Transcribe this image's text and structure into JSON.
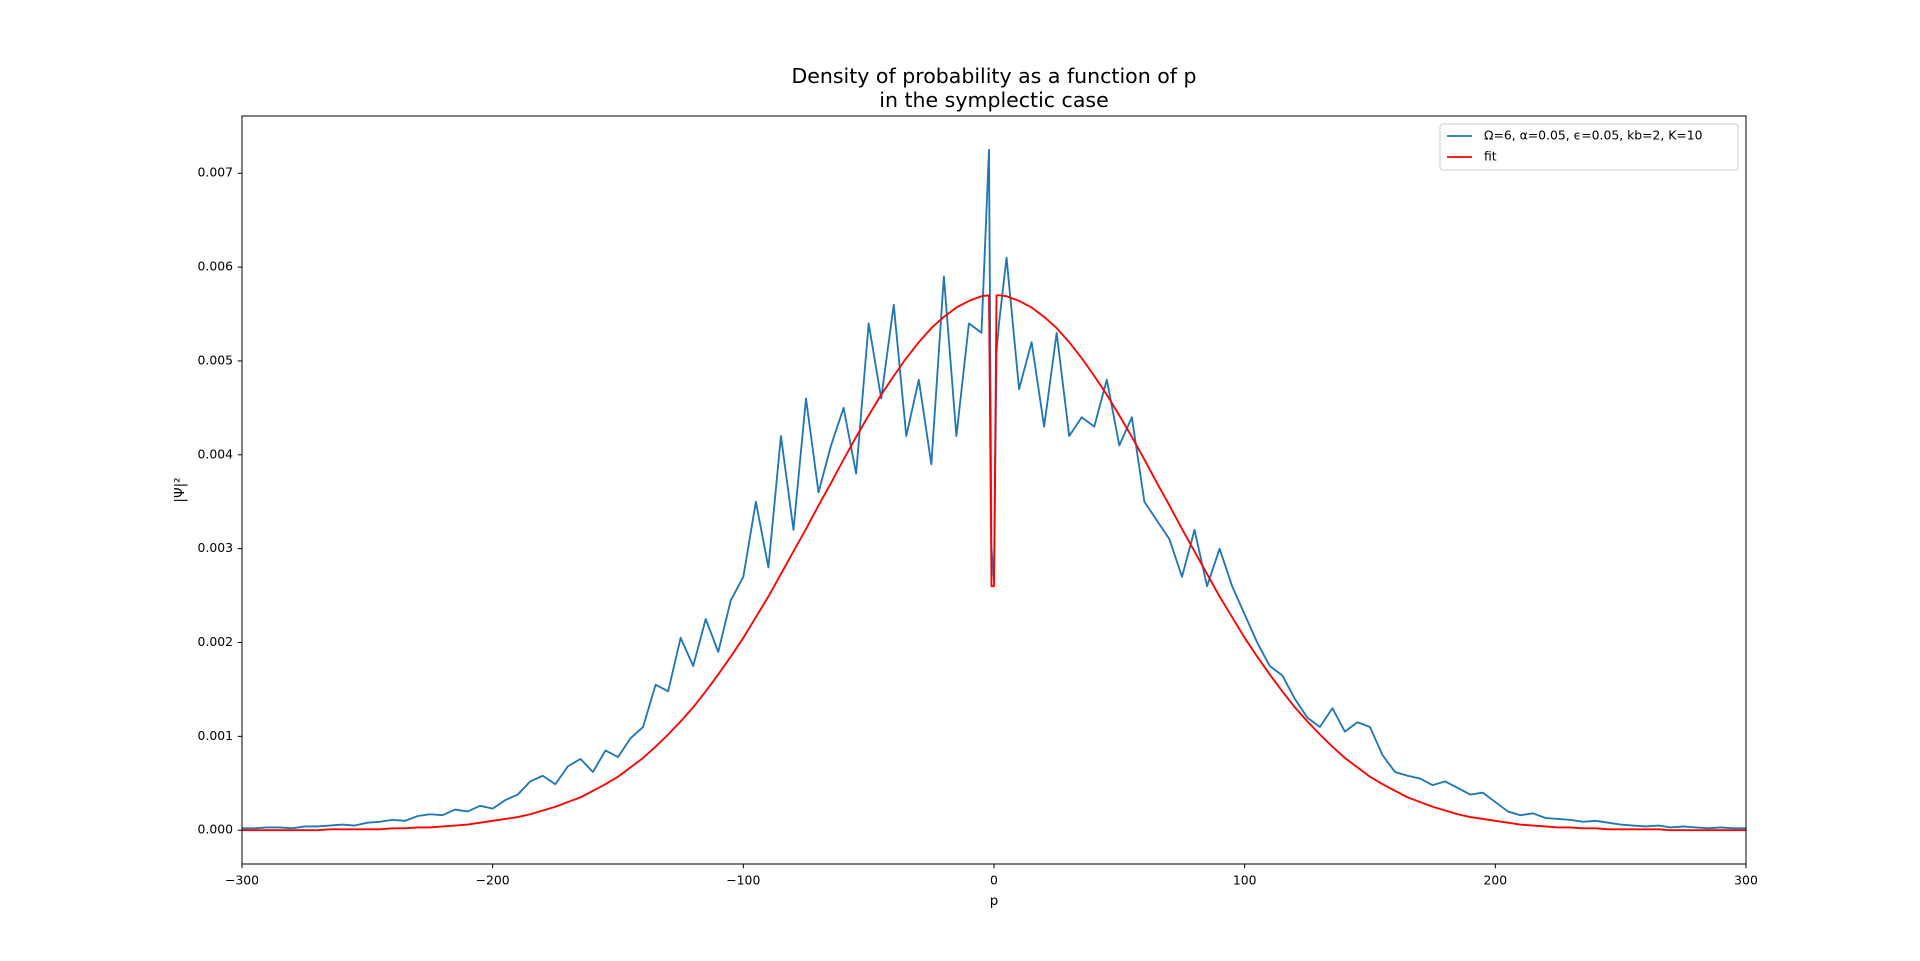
{
  "chart_data": {
    "type": "line",
    "title": [
      "Density of probability as a function of p",
      "in the symplectic case"
    ],
    "xlabel": "p",
    "ylabel": "|Ψ|²",
    "x": [
      -300,
      -295,
      -290,
      -285,
      -280,
      -275,
      -270,
      -265,
      -260,
      -255,
      -250,
      -245,
      -240,
      -235,
      -230,
      -225,
      -220,
      -215,
      -210,
      -205,
      -200,
      -195,
      -190,
      -185,
      -180,
      -175,
      -170,
      -165,
      -160,
      -155,
      -150,
      -145,
      -140,
      -135,
      -130,
      -125,
      -120,
      -115,
      -110,
      -105,
      -100,
      -95,
      -90,
      -85,
      -80,
      -75,
      -70,
      -65,
      -60,
      -55,
      -50,
      -45,
      -40,
      -35,
      -30,
      -25,
      -20,
      -15,
      -10,
      -5,
      -2,
      -1,
      0,
      1,
      2,
      5,
      10,
      15,
      20,
      25,
      30,
      35,
      40,
      45,
      50,
      55,
      60,
      65,
      70,
      75,
      80,
      85,
      90,
      95,
      100,
      105,
      110,
      115,
      120,
      125,
      130,
      135,
      140,
      145,
      150,
      155,
      160,
      165,
      170,
      175,
      180,
      185,
      190,
      195,
      200,
      205,
      210,
      215,
      220,
      225,
      230,
      235,
      240,
      245,
      250,
      255,
      260,
      265,
      270,
      275,
      280,
      285,
      290,
      295,
      300
    ],
    "series": [
      {
        "name": "Ω=6, α=0.05, ϵ=0.05, kb=2, K=10",
        "color": "#1f77b4",
        "values": [
          2e-05,
          2e-05,
          3e-05,
          3e-05,
          2e-05,
          4e-05,
          4e-05,
          5e-05,
          6e-05,
          5e-05,
          8e-05,
          9e-05,
          0.00011,
          0.0001,
          0.00015,
          0.00017,
          0.00016,
          0.00022,
          0.0002,
          0.00026,
          0.00023,
          0.00032,
          0.00038,
          0.00052,
          0.00058,
          0.00049,
          0.00068,
          0.00076,
          0.00062,
          0.00085,
          0.00078,
          0.00098,
          0.0011,
          0.00155,
          0.00148,
          0.00205,
          0.00175,
          0.00225,
          0.0019,
          0.00245,
          0.0027,
          0.0035,
          0.0028,
          0.0042,
          0.0032,
          0.0046,
          0.0036,
          0.0041,
          0.0045,
          0.0038,
          0.0054,
          0.0046,
          0.0056,
          0.0042,
          0.0048,
          0.0039,
          0.0059,
          0.0042,
          0.0054,
          0.0053,
          0.00725,
          0.003,
          0.00265,
          0.0051,
          0.0054,
          0.0061,
          0.0047,
          0.0052,
          0.0043,
          0.0053,
          0.0042,
          0.0044,
          0.0043,
          0.0048,
          0.0041,
          0.0044,
          0.0035,
          0.0033,
          0.0031,
          0.0027,
          0.0032,
          0.0026,
          0.003,
          0.0026,
          0.0023,
          0.002,
          0.00175,
          0.00165,
          0.0014,
          0.0012,
          0.0011,
          0.0013,
          0.00105,
          0.00115,
          0.0011,
          0.0008,
          0.00062,
          0.00058,
          0.00055,
          0.00048,
          0.00052,
          0.00045,
          0.00038,
          0.0004,
          0.0003,
          0.0002,
          0.00016,
          0.00018,
          0.00013,
          0.00012,
          0.00011,
          9e-05,
          0.0001,
          8e-05,
          6e-05,
          5e-05,
          4e-05,
          5e-05,
          3e-05,
          4e-05,
          3e-05,
          2e-05,
          3e-05,
          2e-05,
          2e-05
        ]
      },
      {
        "name": "fit",
        "color": "#ff0000",
        "values": [
          0,
          0,
          0,
          0,
          0,
          0,
          0,
          1e-05,
          1e-05,
          1e-05,
          1e-05,
          1e-05,
          2e-05,
          2e-05,
          3e-05,
          3e-05,
          4e-05,
          5e-05,
          6e-05,
          8e-05,
          0.0001,
          0.00012,
          0.00014,
          0.00017,
          0.00021,
          0.00025,
          0.0003,
          0.00035,
          0.00042,
          0.00049,
          0.00057,
          0.00067,
          0.00077,
          0.00089,
          0.00102,
          0.00116,
          0.00131,
          0.00148,
          0.00166,
          0.00185,
          0.00205,
          0.00227,
          0.00249,
          0.00273,
          0.00297,
          0.00321,
          0.00346,
          0.0037,
          0.00395,
          0.00419,
          0.00442,
          0.00464,
          0.00484,
          0.00503,
          0.0052,
          0.00535,
          0.00547,
          0.00557,
          0.00564,
          0.00569,
          0.0057,
          0.0026,
          0.0026,
          0.0057,
          0.0057,
          0.00569,
          0.00564,
          0.00557,
          0.00547,
          0.00535,
          0.0052,
          0.00503,
          0.00484,
          0.00464,
          0.00442,
          0.00419,
          0.00395,
          0.0037,
          0.00346,
          0.00321,
          0.00297,
          0.00273,
          0.00249,
          0.00227,
          0.00205,
          0.00185,
          0.00166,
          0.00148,
          0.00131,
          0.00116,
          0.00102,
          0.00089,
          0.00077,
          0.00067,
          0.00057,
          0.00049,
          0.00042,
          0.00035,
          0.0003,
          0.00025,
          0.00021,
          0.00017,
          0.00014,
          0.00012,
          0.0001,
          8e-05,
          6e-05,
          5e-05,
          4e-05,
          3e-05,
          3e-05,
          2e-05,
          2e-05,
          1e-05,
          1e-05,
          1e-05,
          1e-05,
          1e-05,
          0,
          0,
          0,
          0,
          0,
          0,
          0
        ]
      }
    ],
    "xlim": [
      -300,
      300
    ],
    "ylim": [
      -0.00036,
      0.00761
    ],
    "xticks": [
      {
        "value": -300,
        "label": "−300"
      },
      {
        "value": -200,
        "label": "−200"
      },
      {
        "value": -100,
        "label": "−100"
      },
      0,
      100,
      200,
      300
    ],
    "yticks": [
      {
        "value": 0,
        "label": "0.000"
      },
      {
        "value": 0.001,
        "label": "0.001"
      },
      {
        "value": 0.002,
        "label": "0.002"
      },
      {
        "value": 0.003,
        "label": "0.003"
      },
      {
        "value": 0.004,
        "label": "0.004"
      },
      {
        "value": 0.005,
        "label": "0.005"
      },
      {
        "value": 0.006,
        "label": "0.006"
      },
      {
        "value": 0.007,
        "label": "0.007"
      }
    ],
    "legend": "upper right",
    "grid": false
  }
}
